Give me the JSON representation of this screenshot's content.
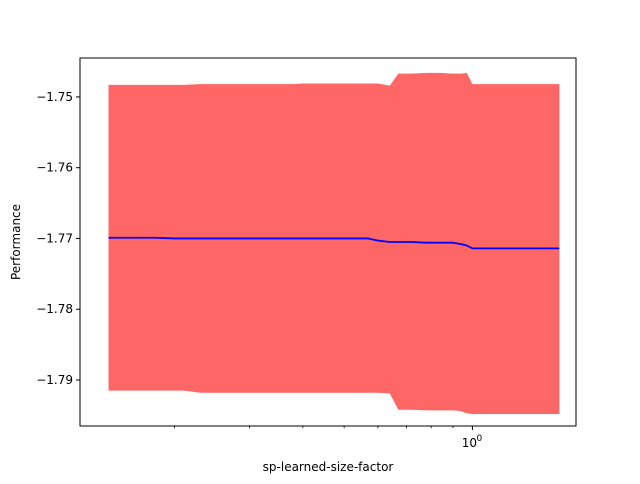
{
  "chart_data": {
    "type": "line",
    "title": "",
    "xlabel": "sp-learned-size-factor",
    "ylabel": "Performance",
    "xscale": "log",
    "xlim": [
      0.12,
      1.75
    ],
    "ylim": [
      -1.7965,
      -1.7445
    ],
    "grid": false,
    "legend": "none",
    "x_ticks": [
      {
        "value": 1.0,
        "label": "10",
        "exponent": "0"
      }
    ],
    "x_minor_ticks": [
      0.2,
      0.3,
      0.4,
      0.5,
      0.6,
      0.7,
      0.8,
      0.9
    ],
    "y_ticks": [
      {
        "value": -1.75,
        "label": "−1.75"
      },
      {
        "value": -1.76,
        "label": "−1.76"
      },
      {
        "value": -1.77,
        "label": "−1.77"
      },
      {
        "value": -1.78,
        "label": "−1.78"
      },
      {
        "value": -1.79,
        "label": "−1.79"
      }
    ],
    "series": [
      {
        "line_color": "#0000ff",
        "band_color": "#ff6666",
        "x": [
          0.14,
          0.16,
          0.18,
          0.2,
          0.21,
          0.23,
          0.26,
          0.3,
          0.34,
          0.38,
          0.4,
          0.43,
          0.47,
          0.52,
          0.57,
          0.6,
          0.64,
          0.67,
          0.72,
          0.78,
          0.84,
          0.9,
          0.94,
          0.97,
          1.0,
          1.1,
          1.25,
          1.4,
          1.6
        ],
        "y": [
          -1.7699,
          -1.7699,
          -1.7699,
          -1.77,
          -1.77,
          -1.77,
          -1.77,
          -1.77,
          -1.77,
          -1.77,
          -1.77,
          -1.77,
          -1.77,
          -1.77,
          -1.77,
          -1.7703,
          -1.7705,
          -1.7705,
          -1.7705,
          -1.7706,
          -1.7706,
          -1.7706,
          -1.7708,
          -1.771,
          -1.7714,
          -1.7714,
          -1.7714,
          -1.7714,
          -1.7714
        ],
        "lower": [
          -1.7915,
          -1.7915,
          -1.7915,
          -1.7915,
          -1.7915,
          -1.7918,
          -1.7918,
          -1.7918,
          -1.7918,
          -1.7918,
          -1.7918,
          -1.7918,
          -1.7918,
          -1.7918,
          -1.7918,
          -1.7918,
          -1.7919,
          -1.7942,
          -1.7942,
          -1.7943,
          -1.7943,
          -1.7943,
          -1.7944,
          -1.7947,
          -1.7948,
          -1.7948,
          -1.7948,
          -1.7948,
          -1.7948
        ],
        "upper": [
          -1.7483,
          -1.7483,
          -1.7483,
          -1.7483,
          -1.7483,
          -1.7482,
          -1.7482,
          -1.7482,
          -1.7482,
          -1.7482,
          -1.7481,
          -1.7481,
          -1.7481,
          -1.7481,
          -1.7481,
          -1.7481,
          -1.7484,
          -1.7467,
          -1.7467,
          -1.7466,
          -1.7466,
          -1.7467,
          -1.7467,
          -1.7466,
          -1.7482,
          -1.7482,
          -1.7482,
          -1.7482,
          -1.7482
        ]
      }
    ]
  }
}
